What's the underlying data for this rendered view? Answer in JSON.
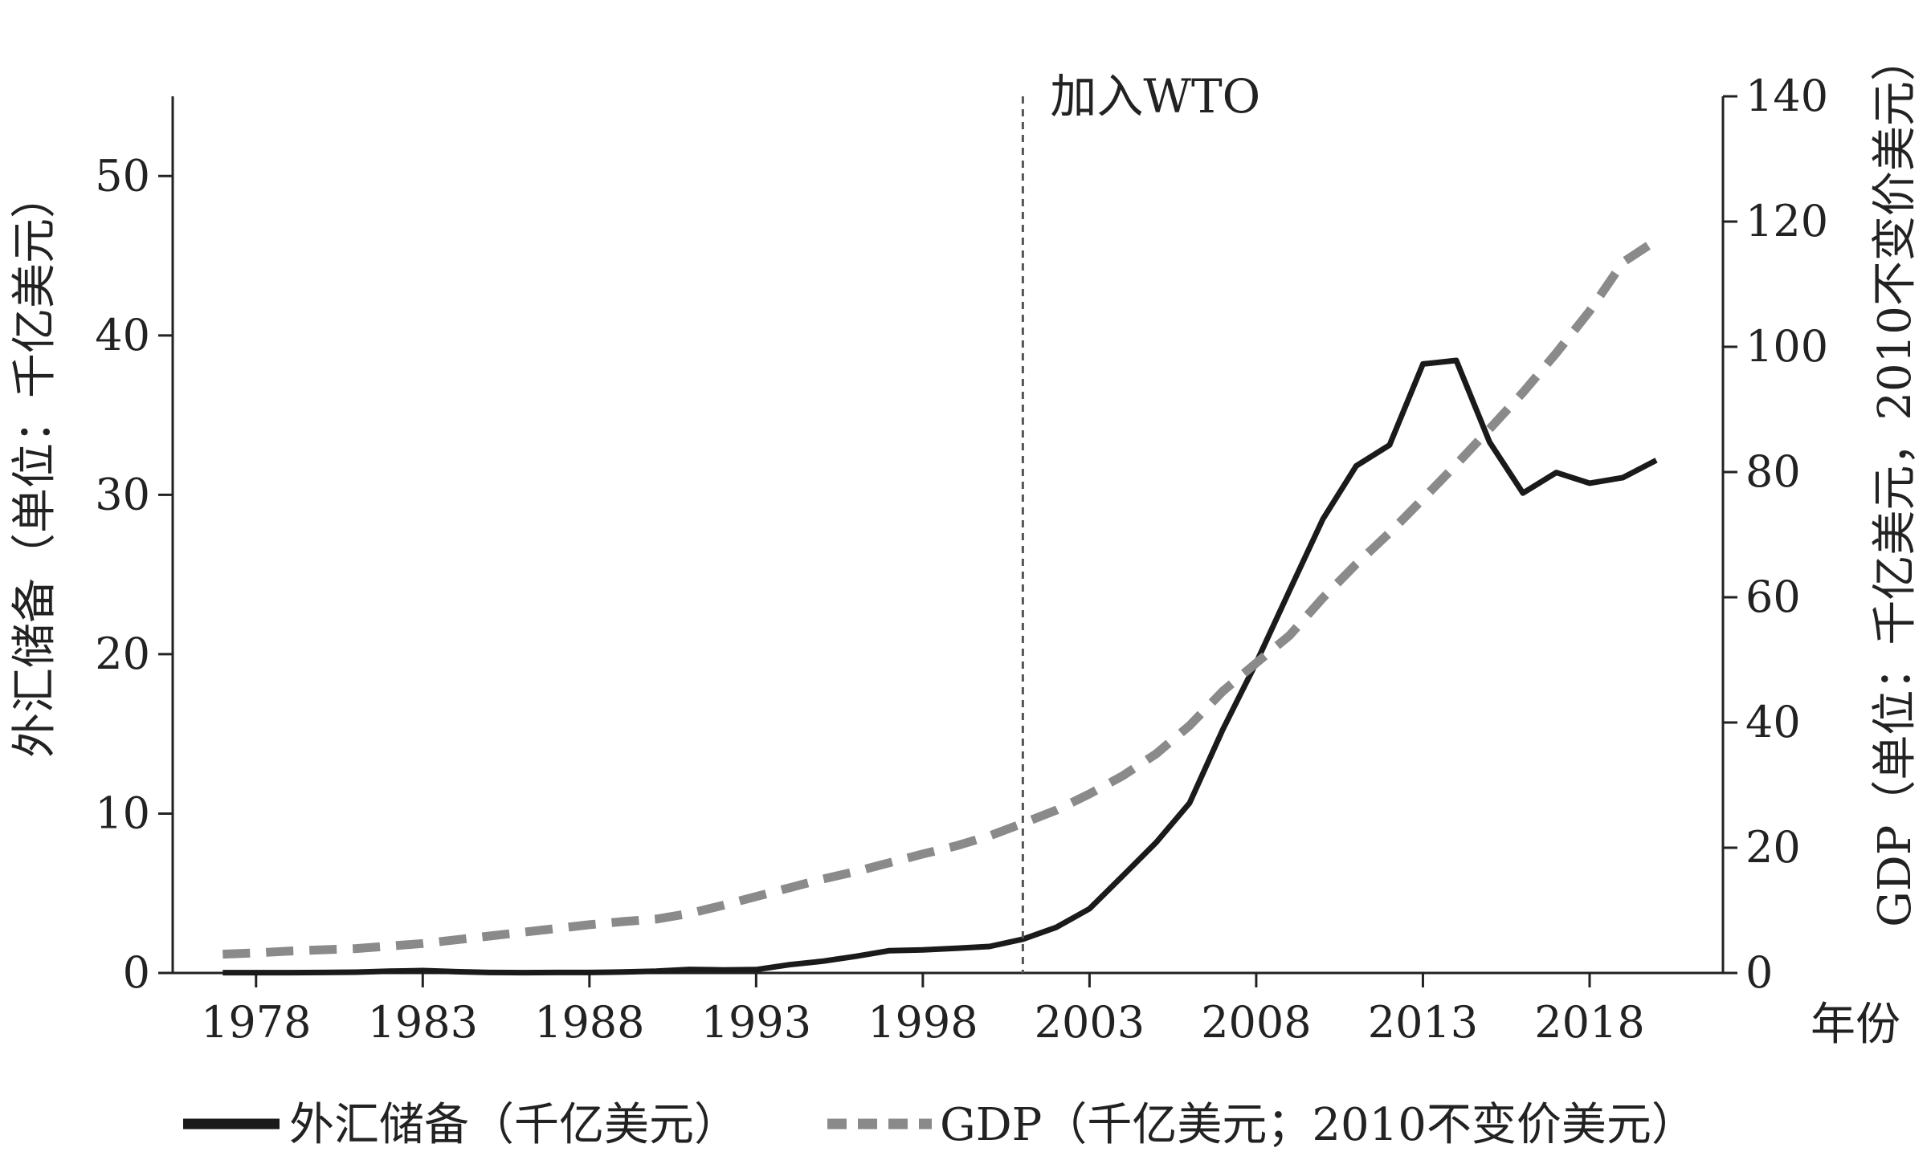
{
  "chart_data": {
    "type": "line",
    "annotation": "加入WTO",
    "annotation_x": 2001,
    "xlabel": "年份",
    "ylabel_left": "外汇储备（单位：千亿美元）",
    "ylabel_right": "GDP（单位：千亿美元，2010不变价美元）",
    "x_tick_labels": [
      "1978",
      "1983",
      "1988",
      "1993",
      "1998",
      "2003",
      "2008",
      "2013",
      "2018"
    ],
    "y_left_ticks": [
      "0",
      "10",
      "20",
      "30",
      "40",
      "50"
    ],
    "y_right_ticks": [
      "0",
      "20",
      "40",
      "60",
      "80",
      "100",
      "120",
      "140"
    ],
    "xlim": [
      1975.5,
      2022
    ],
    "ylim_left": [
      0,
      55
    ],
    "ylim_right": [
      0,
      140
    ],
    "legend_position": "bottom",
    "legend": [
      "外汇储备（千亿美元）",
      "GDP（千亿美元；2010不变价美元）"
    ],
    "colors": {
      "reserves": "#1a1a1a",
      "gdp": "#8a8a8a",
      "axis": "#222222",
      "wto_line": "#555555"
    },
    "series": [
      {
        "axis": "left",
        "style": "solid",
        "x": [
          1977,
          1978,
          1979,
          1980,
          1981,
          1982,
          1983,
          1984,
          1985,
          1986,
          1987,
          1988,
          1989,
          1990,
          1991,
          1992,
          1993,
          1994,
          1995,
          1996,
          1997,
          1998,
          1999,
          2000,
          2001,
          2002,
          2003,
          2004,
          2005,
          2006,
          2007,
          2008,
          2009,
          2010,
          2011,
          2012,
          2013,
          2014,
          2015,
          2016,
          2017,
          2018,
          2019,
          2020
        ],
        "values": [
          0.02,
          0.02,
          0.02,
          0.03,
          0.05,
          0.11,
          0.15,
          0.08,
          0.03,
          0.02,
          0.03,
          0.03,
          0.06,
          0.11,
          0.22,
          0.19,
          0.21,
          0.52,
          0.74,
          1.05,
          1.4,
          1.45,
          1.55,
          1.66,
          2.12,
          2.86,
          4.03,
          6.1,
          8.19,
          10.66,
          15.28,
          19.46,
          23.99,
          28.47,
          31.81,
          33.12,
          38.21,
          38.43,
          33.3,
          30.11,
          31.4,
          30.73,
          31.08,
          32.17
        ]
      },
      {
        "axis": "right",
        "style": "dashed",
        "x": [
          1977,
          1978,
          1979,
          1980,
          1981,
          1982,
          1983,
          1984,
          1985,
          1986,
          1987,
          1988,
          1989,
          1990,
          1991,
          1992,
          1993,
          1994,
          1995,
          1996,
          1997,
          1998,
          1999,
          2000,
          2001,
          2002,
          2003,
          2004,
          2005,
          2006,
          2007,
          2008,
          2009,
          2010,
          2011,
          2012,
          2013,
          2014,
          2015,
          2016,
          2017,
          2018,
          2019,
          2020
        ],
        "values": [
          3.0,
          3.2,
          3.5,
          3.7,
          3.9,
          4.3,
          4.7,
          5.3,
          5.9,
          6.5,
          7.1,
          7.7,
          8.2,
          8.6,
          9.5,
          10.8,
          12.2,
          13.6,
          15.0,
          16.2,
          17.6,
          19.0,
          20.3,
          21.9,
          23.9,
          26.0,
          28.6,
          31.5,
          35.0,
          39.5,
          45.0,
          49.5,
          53.9,
          59.9,
          65.3,
          70.3,
          75.7,
          81.2,
          86.9,
          92.7,
          99.0,
          105.7,
          113.5,
          117.0
        ]
      }
    ]
  }
}
